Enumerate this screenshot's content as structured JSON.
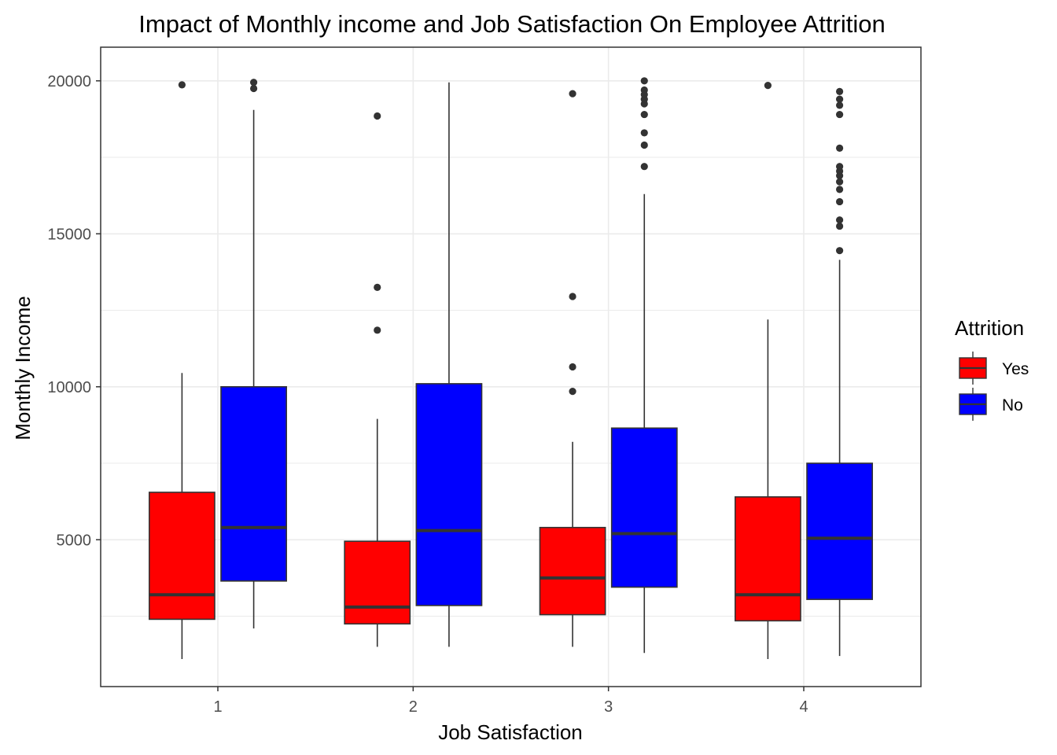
{
  "chart_data": {
    "type": "boxplot",
    "title": "Impact of Monthly income and Job Satisfaction On Employee Attrition",
    "xlabel": "Job Satisfaction",
    "ylabel": "Monthly Income",
    "categories": [
      "1",
      "2",
      "3",
      "4"
    ],
    "y_ticks": [
      5000,
      10000,
      15000,
      20000
    ],
    "y_tick_labels": [
      "5000",
      "10000",
      "15000",
      "20000"
    ],
    "ylim": [
      200,
      21100
    ],
    "grid": true,
    "legend": {
      "title": "Attrition",
      "position": "right",
      "entries": [
        "Yes",
        "No"
      ]
    },
    "colors": {
      "Yes": "#ff0000",
      "No": "#0000ff",
      "outline": "#333333",
      "panel_border": "#333333",
      "grid": "#ebebeb"
    },
    "series": [
      {
        "name": "Yes",
        "boxes": [
          {
            "category": "1",
            "whisker_low": 1100,
            "q1": 2400,
            "median": 3200,
            "q3": 6550,
            "whisker_high": 10450,
            "outliers": [
              19870
            ]
          },
          {
            "category": "2",
            "whisker_low": 1500,
            "q1": 2250,
            "median": 2800,
            "q3": 4950,
            "whisker_high": 8950,
            "outliers": [
              11850,
              13250,
              18850
            ]
          },
          {
            "category": "3",
            "whisker_low": 1500,
            "q1": 2550,
            "median": 3750,
            "q3": 5400,
            "whisker_high": 8200,
            "outliers": [
              9850,
              10650,
              12950,
              19580
            ]
          },
          {
            "category": "4",
            "whisker_low": 1100,
            "q1": 2350,
            "median": 3200,
            "q3": 6400,
            "whisker_high": 12200,
            "outliers": [
              19850
            ]
          }
        ]
      },
      {
        "name": "No",
        "boxes": [
          {
            "category": "1",
            "whisker_low": 2100,
            "q1": 3650,
            "median": 5400,
            "q3": 10000,
            "whisker_high": 19050,
            "outliers": [
              19750,
              19950
            ]
          },
          {
            "category": "2",
            "whisker_low": 1500,
            "q1": 2850,
            "median": 5300,
            "q3": 10100,
            "whisker_high": 19950,
            "outliers": []
          },
          {
            "category": "3",
            "whisker_low": 1300,
            "q1": 3450,
            "median": 5200,
            "q3": 8650,
            "whisker_high": 16300,
            "outliers": [
              17200,
              17900,
              18300,
              18900,
              19250,
              19400,
              19550,
              19700,
              20000
            ]
          },
          {
            "category": "4",
            "whisker_low": 1200,
            "q1": 3050,
            "median": 5050,
            "q3": 7500,
            "whisker_high": 14150,
            "outliers": [
              14450,
              15250,
              15450,
              16050,
              16450,
              16700,
              16900,
              17050,
              17200,
              17800,
              18900,
              19200,
              19400,
              19650
            ]
          }
        ]
      }
    ]
  }
}
